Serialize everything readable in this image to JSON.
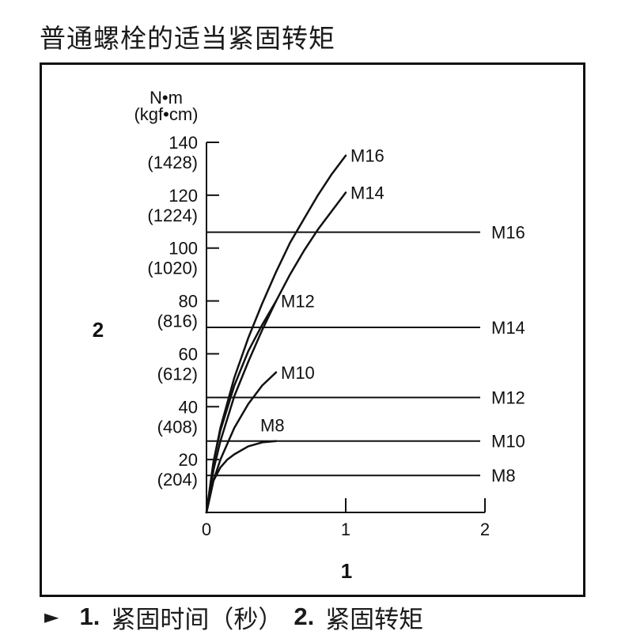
{
  "title": "普通螺栓的适当紧固转矩",
  "footer": {
    "arrow": "►",
    "item1_num": "1.",
    "item1_text": "紧固时间（秒）",
    "item2_num": "2.",
    "item2_text": "紧固转矩"
  },
  "chart_data": {
    "type": "line",
    "title": "普通螺栓的适当紧固转矩",
    "xlabel": "1",
    "ylabel": "2",
    "y_unit_line1": "N•m",
    "y_unit_line2": "(kgf•cm)",
    "xlim": [
      0,
      2
    ],
    "ylim": [
      0,
      140
    ],
    "x_ticks": [
      {
        "value": 0,
        "label": "0"
      },
      {
        "value": 1,
        "label": "1"
      },
      {
        "value": 2,
        "label": "2"
      }
    ],
    "y_ticks": [
      {
        "value": 20,
        "label": "20",
        "sublabel": "(204)"
      },
      {
        "value": 40,
        "label": "40",
        "sublabel": "(408)"
      },
      {
        "value": 60,
        "label": "60",
        "sublabel": "(612)"
      },
      {
        "value": 80,
        "label": "80",
        "sublabel": "(816)"
      },
      {
        "value": 100,
        "label": "100",
        "sublabel": "(1020)"
      },
      {
        "value": 120,
        "label": "120",
        "sublabel": "(1224)"
      },
      {
        "value": 140,
        "label": "140",
        "sublabel": "(1428)"
      }
    ],
    "series": [
      {
        "name": "M16",
        "x": [
          0,
          0.05,
          0.1,
          0.2,
          0.3,
          0.4,
          0.5,
          0.6,
          0.7,
          0.8,
          0.9,
          1.0
        ],
        "y": [
          0,
          19,
          32,
          51,
          66,
          79,
          91,
          102,
          111,
          120,
          128,
          135
        ]
      },
      {
        "name": "M14",
        "x": [
          0,
          0.05,
          0.1,
          0.2,
          0.3,
          0.4,
          0.5,
          0.6,
          0.7,
          0.8,
          0.9,
          1.0
        ],
        "y": [
          0,
          16,
          27,
          44,
          57,
          69,
          80,
          90,
          99,
          107,
          114,
          121
        ]
      },
      {
        "name": "M12",
        "x": [
          0,
          0.05,
          0.1,
          0.2,
          0.3,
          0.4,
          0.5
        ],
        "y": [
          0,
          19,
          31,
          48,
          61,
          71,
          80
        ]
      },
      {
        "name": "M10",
        "x": [
          0,
          0.05,
          0.1,
          0.2,
          0.3,
          0.4,
          0.5
        ],
        "y": [
          0,
          12,
          20,
          32,
          41,
          48,
          53
        ]
      },
      {
        "name": "M8",
        "x": [
          0,
          0.05,
          0.1,
          0.15,
          0.2,
          0.3,
          0.4,
          0.5
        ],
        "y": [
          0,
          12,
          17,
          20,
          22,
          25,
          26.5,
          27
        ]
      }
    ],
    "reference_lines": [
      {
        "name": "M16",
        "y": 106
      },
      {
        "name": "M14",
        "y": 70
      },
      {
        "name": "M12",
        "y": 43.5
      },
      {
        "name": "M10",
        "y": 27
      },
      {
        "name": "M8",
        "y": 14
      }
    ]
  }
}
